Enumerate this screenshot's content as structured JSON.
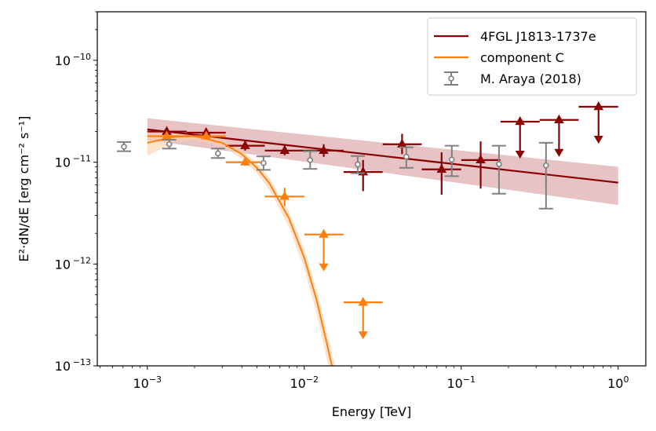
{
  "chart_data": {
    "type": "scatter",
    "title": "",
    "xlabel": "Energy [TeV]",
    "ylabel": "E²·dN/dE [erg cm⁻² s⁻¹]",
    "xscale": "log",
    "yscale": "log",
    "xlim": [
      0.00048,
      1.5
    ],
    "ylim": [
      1e-13,
      3e-10
    ],
    "x_ticks": [
      {
        "value": 0.001,
        "base": "10",
        "exp": "−3"
      },
      {
        "value": 0.01,
        "base": "10",
        "exp": "−2"
      },
      {
        "value": 0.1,
        "base": "10",
        "exp": "−1"
      },
      {
        "value": 1,
        "base": "10",
        "exp": "0"
      }
    ],
    "y_ticks": [
      {
        "value": 1e-13,
        "base": "10",
        "exp": "−13"
      },
      {
        "value": 1e-12,
        "base": "10",
        "exp": "−12"
      },
      {
        "value": 1e-11,
        "base": "10",
        "exp": "−11"
      },
      {
        "value": 1e-10,
        "base": "10",
        "exp": "−10"
      }
    ],
    "grid": false,
    "legend": {
      "position": "top-right",
      "entries": [
        {
          "label": "4FGL J1813-1737e",
          "kind": "line",
          "color": "#8b0000"
        },
        {
          "label": "component C",
          "kind": "line",
          "color": "#ff7f0e"
        },
        {
          "label": "M. Araya (2018)",
          "kind": "errorbar",
          "color": "#808080"
        }
      ]
    },
    "models": [
      {
        "name": "4FGL J1813-1737e",
        "color": "#8b0000",
        "band_color": "#c97b7e",
        "x_range": [
          0.001,
          1.0
        ],
        "curve": {
          "x": [
            0.001,
            1.0
          ],
          "y": [
            2.1e-11,
            6.3e-12
          ]
        },
        "band": {
          "x": [
            0.001,
            1.0
          ],
          "lower": [
            1.65e-11,
            3.8e-12
          ],
          "upper": [
            2.7e-11,
            9e-12
          ]
        }
      },
      {
        "name": "component C",
        "color": "#ff7f0e",
        "band_color": "#fdd0a8",
        "x_range": [
          0.001,
          0.0165
        ],
        "curve": {
          "x": [
            0.001,
            0.0015,
            0.002,
            0.003,
            0.004,
            0.005,
            0.006,
            0.008,
            0.01,
            0.012,
            0.014,
            0.0155
          ],
          "y": [
            1.55e-11,
            1.78e-11,
            1.8e-11,
            1.55e-11,
            1.2e-11,
            8.8e-12,
            6.2e-12,
            2.8e-12,
            1.15e-12,
            4.4e-13,
            1.6e-13,
            8e-14
          ]
        },
        "band_rel_lower": [
          0.75,
          0.88,
          0.92,
          0.92,
          0.9,
          0.88,
          0.86,
          0.82,
          0.78,
          0.74,
          0.7,
          0.68
        ],
        "band_rel_upper": [
          1.2,
          1.08,
          1.06,
          1.07,
          1.09,
          1.11,
          1.13,
          1.16,
          1.2,
          1.25,
          1.3,
          1.33
        ]
      }
    ],
    "series": [
      {
        "name": "4FGL J1813-1737e flux points",
        "color": "#8b0000",
        "marker": "triangle",
        "points": [
          {
            "x": 0.00133,
            "y": 2e-11,
            "xlo": 0.001,
            "xhi": 0.00178,
            "ylo": 1.85e-11,
            "yhi": 2.15e-11,
            "ul": false
          },
          {
            "x": 0.00237,
            "y": 1.95e-11,
            "xlo": 0.00178,
            "xhi": 0.00316,
            "ylo": 1.82e-11,
            "yhi": 2.1e-11,
            "ul": false
          },
          {
            "x": 0.0042,
            "y": 1.45e-11,
            "xlo": 0.00316,
            "xhi": 0.0056,
            "ylo": 1.3e-11,
            "yhi": 1.6e-11,
            "ul": false
          },
          {
            "x": 0.0075,
            "y": 1.3e-11,
            "xlo": 0.0056,
            "xhi": 0.01,
            "ylo": 1.17e-11,
            "yhi": 1.45e-11,
            "ul": false
          },
          {
            "x": 0.0133,
            "y": 1.3e-11,
            "xlo": 0.01,
            "xhi": 0.0178,
            "ylo": 1.13e-11,
            "yhi": 1.5e-11,
            "ul": false
          },
          {
            "x": 0.0237,
            "y": 8e-12,
            "xlo": 0.0178,
            "xhi": 0.0316,
            "ylo": 5.2e-12,
            "yhi": 1.05e-11,
            "ul": false
          },
          {
            "x": 0.042,
            "y": 1.5e-11,
            "xlo": 0.0316,
            "xhi": 0.056,
            "ylo": 1.2e-11,
            "yhi": 1.9e-11,
            "ul": false
          },
          {
            "x": 0.075,
            "y": 8.5e-12,
            "xlo": 0.056,
            "xhi": 0.1,
            "ylo": 4.8e-12,
            "yhi": 1.25e-11,
            "ul": false
          },
          {
            "x": 0.133,
            "y": 1.05e-11,
            "xlo": 0.1,
            "xhi": 0.178,
            "ylo": 5.5e-12,
            "yhi": 1.6e-11,
            "ul": false
          },
          {
            "x": 0.237,
            "y": 2.5e-11,
            "xlo": 0.178,
            "xhi": 0.316,
            "ul": true
          },
          {
            "x": 0.42,
            "y": 2.6e-11,
            "xlo": 0.316,
            "xhi": 0.56,
            "ul": true
          },
          {
            "x": 0.75,
            "y": 3.5e-11,
            "xlo": 0.56,
            "xhi": 1.0,
            "ul": true
          }
        ]
      },
      {
        "name": "component C flux points",
        "color": "#ff7f0e",
        "marker": "triangle",
        "points": [
          {
            "x": 0.00133,
            "y": 1.8e-11,
            "xlo": 0.001,
            "xhi": 0.00178,
            "ylo": 1.7e-11,
            "yhi": 1.9e-11,
            "ul": false
          },
          {
            "x": 0.00237,
            "y": 1.8e-11,
            "xlo": 0.00178,
            "xhi": 0.00316,
            "ylo": 1.7e-11,
            "yhi": 1.9e-11,
            "ul": false
          },
          {
            "x": 0.0042,
            "y": 1e-11,
            "xlo": 0.00316,
            "xhi": 0.0056,
            "ylo": 9.2e-12,
            "yhi": 1.08e-11,
            "ul": false
          },
          {
            "x": 0.0075,
            "y": 4.6e-12,
            "xlo": 0.0056,
            "xhi": 0.01,
            "ylo": 3.7e-12,
            "yhi": 5.6e-12,
            "ul": false
          },
          {
            "x": 0.0133,
            "y": 1.95e-12,
            "xlo": 0.01,
            "xhi": 0.0178,
            "ul": true
          },
          {
            "x": 0.0237,
            "y": 4.2e-13,
            "xlo": 0.0178,
            "xhi": 0.0316,
            "ul": true
          }
        ]
      },
      {
        "name": "M. Araya (2018)",
        "color": "#808080",
        "marker": "open-circle",
        "points": [
          {
            "x": 0.00071,
            "y": 1.42e-11,
            "ylo": 1.28e-11,
            "yhi": 1.58e-11
          },
          {
            "x": 0.00138,
            "y": 1.5e-11,
            "ylo": 1.36e-11,
            "yhi": 1.66e-11
          },
          {
            "x": 0.00282,
            "y": 1.22e-11,
            "ylo": 1.1e-11,
            "yhi": 1.36e-11
          },
          {
            "x": 0.0055,
            "y": 9.8e-12,
            "ylo": 8.4e-12,
            "yhi": 1.14e-11
          },
          {
            "x": 0.0109,
            "y": 1.05e-11,
            "ylo": 8.6e-12,
            "yhi": 1.28e-11
          },
          {
            "x": 0.0219,
            "y": 9.5e-12,
            "ylo": 7.8e-12,
            "yhi": 1.15e-11
          },
          {
            "x": 0.0447,
            "y": 1.13e-11,
            "ylo": 8.8e-12,
            "yhi": 1.4e-11
          },
          {
            "x": 0.0871,
            "y": 1.06e-11,
            "ylo": 7.3e-12,
            "yhi": 1.45e-11
          },
          {
            "x": 0.174,
            "y": 9.6e-12,
            "ylo": 4.9e-12,
            "yhi": 1.45e-11
          },
          {
            "x": 0.347,
            "y": 9.3e-12,
            "ylo": 3.5e-12,
            "yhi": 1.55e-11
          }
        ]
      }
    ]
  }
}
